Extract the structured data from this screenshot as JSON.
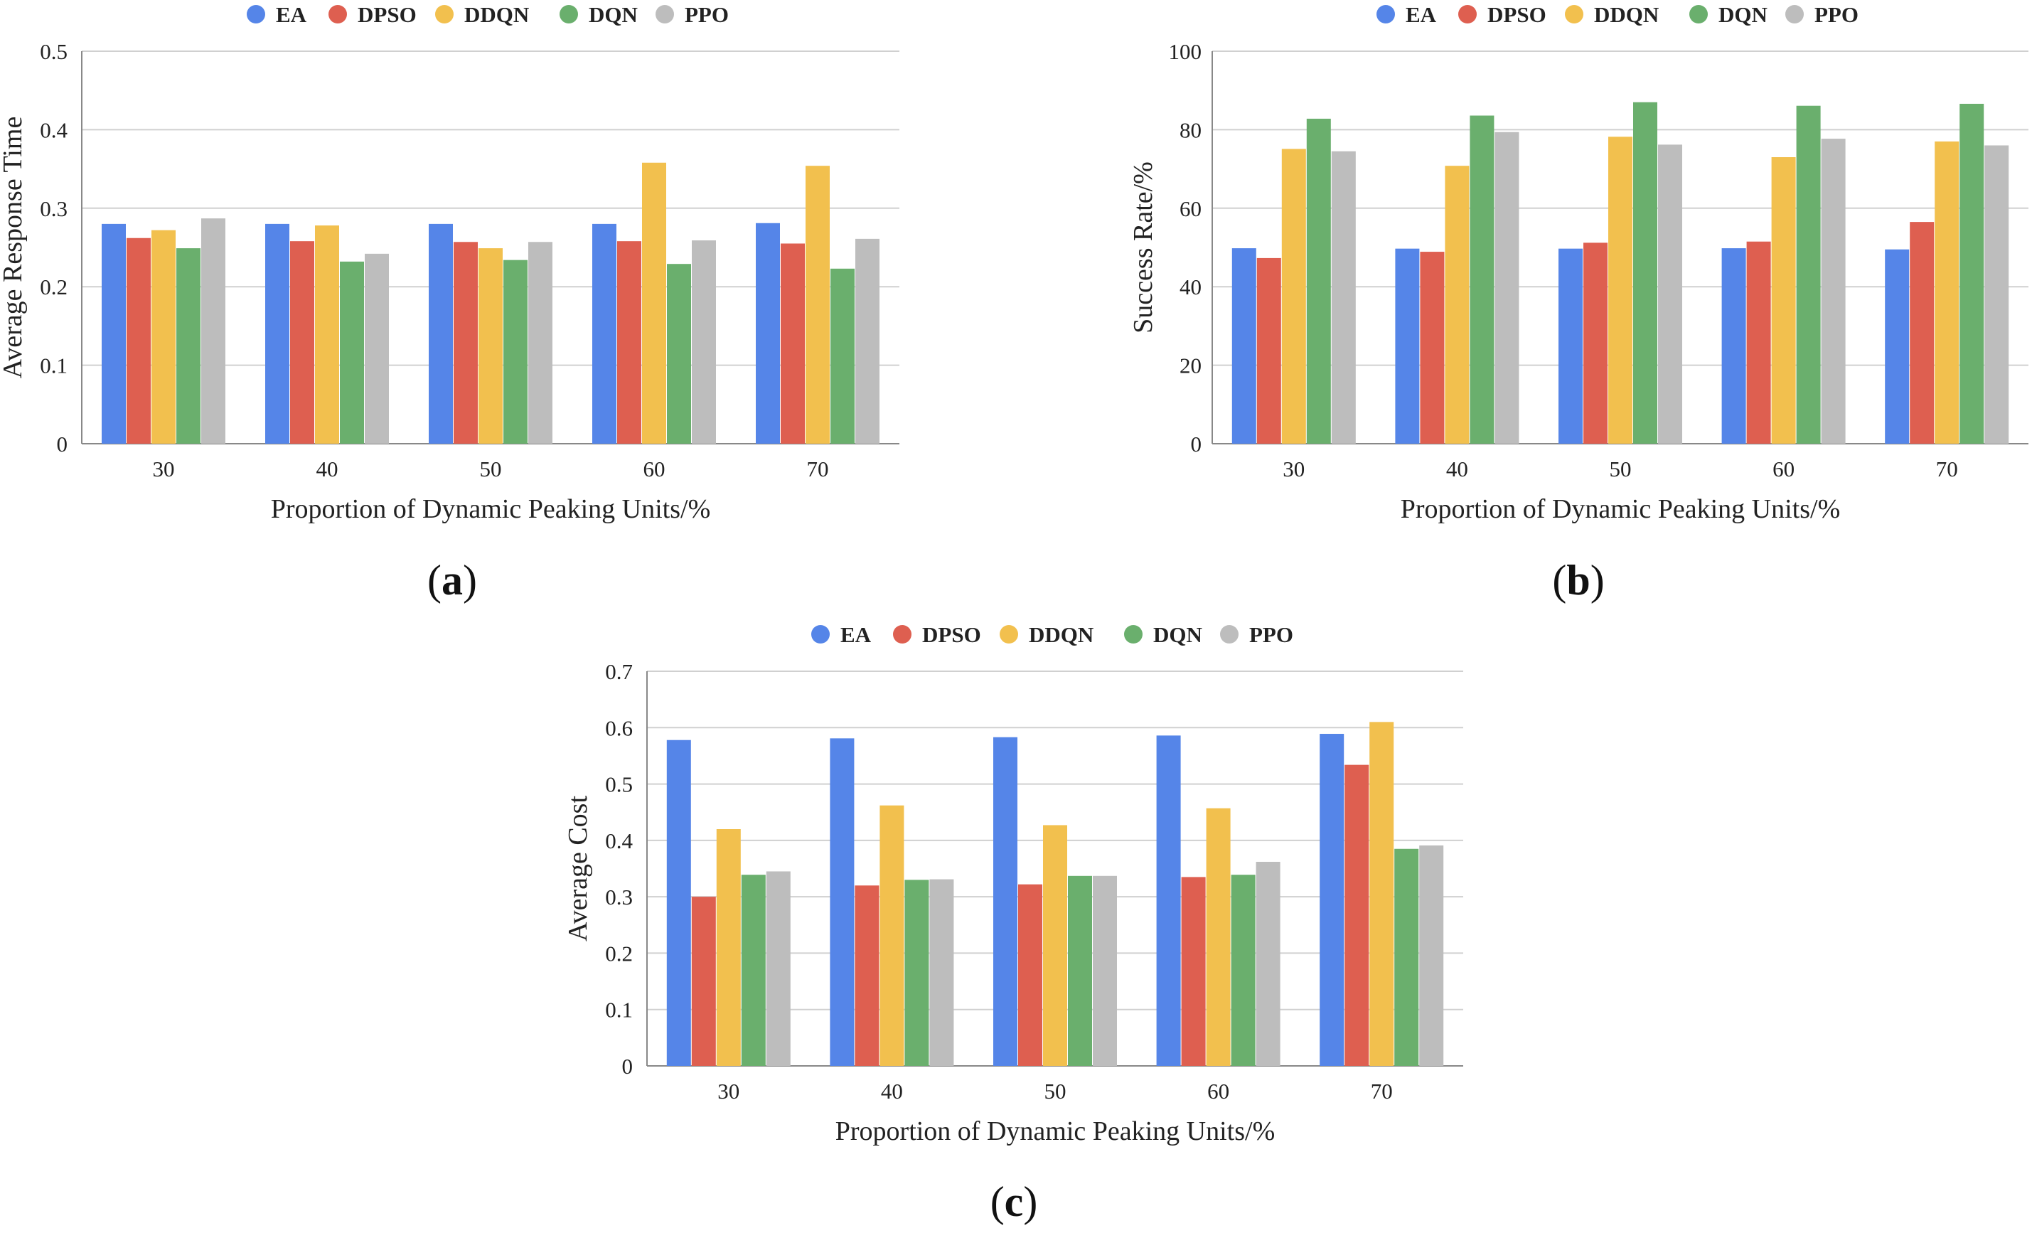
{
  "chart_data": [
    {
      "type": "bar",
      "panel": "a",
      "categories": [
        "30",
        "40",
        "50",
        "60",
        "70"
      ],
      "series": [
        {
          "name": "EA",
          "values": [
            0.28,
            0.28,
            0.28,
            0.28,
            0.281
          ]
        },
        {
          "name": "DPSO",
          "values": [
            0.262,
            0.258,
            0.257,
            0.258,
            0.255
          ]
        },
        {
          "name": "DDQN",
          "values": [
            0.272,
            0.278,
            0.249,
            0.358,
            0.354
          ]
        },
        {
          "name": "DQN",
          "values": [
            0.249,
            0.232,
            0.234,
            0.229,
            0.223
          ]
        },
        {
          "name": "PPO",
          "values": [
            0.287,
            0.242,
            0.257,
            0.259,
            0.261
          ]
        }
      ],
      "xlabel": "Proportion of Dynamic Peaking Units/%",
      "ylabel": "Average Response Time",
      "ylim": [
        0,
        0.5
      ],
      "yticks": [
        "0",
        "0.1",
        "0.2",
        "0.3",
        "0.4",
        "0.5"
      ],
      "legend": "top-center",
      "grid": true
    },
    {
      "type": "bar",
      "panel": "b",
      "categories": [
        "30",
        "40",
        "50",
        "60",
        "70"
      ],
      "series": [
        {
          "name": "EA",
          "values": [
            49.8,
            49.7,
            49.7,
            49.8,
            49.5
          ]
        },
        {
          "name": "DPSO",
          "values": [
            47.3,
            48.9,
            51.2,
            51.5,
            56.5
          ]
        },
        {
          "name": "DDQN",
          "values": [
            75.1,
            70.8,
            78.2,
            73.0,
            77.0
          ]
        },
        {
          "name": "DQN",
          "values": [
            82.8,
            83.6,
            87.0,
            86.1,
            86.6
          ]
        },
        {
          "name": "PPO",
          "values": [
            74.5,
            79.4,
            76.2,
            77.7,
            76.0
          ]
        }
      ],
      "xlabel": "Proportion of Dynamic Peaking Units/%",
      "ylabel": "Success Rate/%",
      "ylim": [
        0,
        100
      ],
      "yticks": [
        "0",
        "20",
        "40",
        "60",
        "80",
        "100"
      ],
      "legend": "top-center",
      "grid": true
    },
    {
      "type": "bar",
      "panel": "c",
      "categories": [
        "30",
        "40",
        "50",
        "60",
        "70"
      ],
      "series": [
        {
          "name": "EA",
          "values": [
            0.578,
            0.581,
            0.583,
            0.586,
            0.589
          ]
        },
        {
          "name": "DPSO",
          "values": [
            0.3,
            0.32,
            0.322,
            0.335,
            0.534
          ]
        },
        {
          "name": "DDQN",
          "values": [
            0.42,
            0.462,
            0.427,
            0.457,
            0.61
          ]
        },
        {
          "name": "DQN",
          "values": [
            0.339,
            0.33,
            0.337,
            0.339,
            0.385
          ]
        },
        {
          "name": "PPO",
          "values": [
            0.345,
            0.331,
            0.337,
            0.362,
            0.391
          ]
        }
      ],
      "xlabel": "Proportion of Dynamic Peaking Units/%",
      "ylabel": "Average Cost",
      "ylim": [
        0,
        0.7
      ],
      "yticks": [
        "0",
        "0.1",
        "0.2",
        "0.3",
        "0.4",
        "0.5",
        "0.6",
        "0.7"
      ],
      "legend": "top-center",
      "grid": true
    }
  ],
  "series_colors": {
    "EA": "#5585e8",
    "DPSO": "#de5f50",
    "DDQN": "#f2c04e",
    "DQN": "#6aaf6d",
    "PPO": "#bdbdbd"
  },
  "panel_labels": {
    "a": {
      "open": "(",
      "letter": "a",
      "close": ")"
    },
    "b": {
      "open": "(",
      "letter": "b",
      "close": ")"
    },
    "c": {
      "open": "(",
      "letter": "c",
      "close": ")"
    }
  }
}
